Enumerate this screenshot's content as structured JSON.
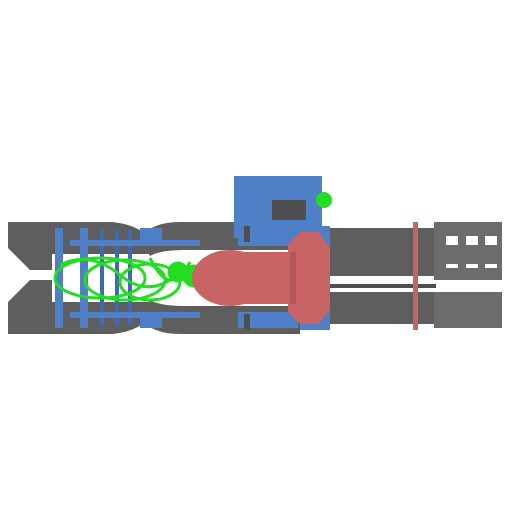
{
  "scene": {
    "subject": "mechanical-blaster-assembly",
    "view": "top-down"
  },
  "colors": {
    "background": "#ffffff",
    "frame_gray": "#5e5e5e",
    "frame_gray_light": "#6c6c6c",
    "frame_gray_dark": "#4f4f4f",
    "armor_blue": "#4f7fc7",
    "armor_blue_dark": "#3e6bb0",
    "core_red": "#c86464",
    "core_red_dark": "#b35656",
    "coil_green": "#22dd22",
    "vent_white": "#ffffff"
  },
  "icons": {
    "barrel": "barrel-icon",
    "core": "energy-core-icon",
    "coil": "coil-icon",
    "vent": "vent-icon"
  }
}
